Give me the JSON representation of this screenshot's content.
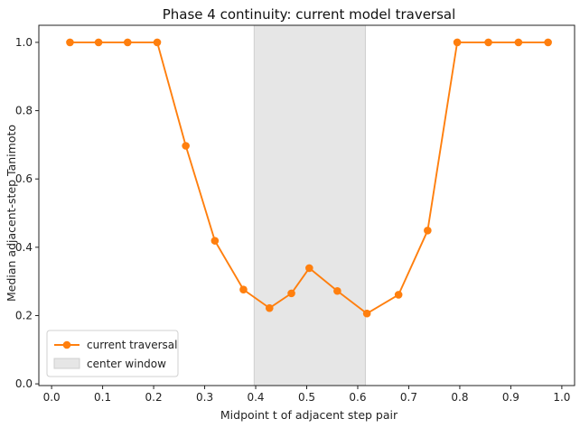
{
  "chart_data": {
    "type": "line",
    "title": "Phase 4 continuity: current model traversal",
    "xlabel": "Midpoint t of adjacent step pair",
    "ylabel": "Median adjacent-step Tanimoto",
    "xlim": [
      -0.025,
      1.025
    ],
    "ylim": [
      -0.005,
      1.05
    ],
    "xticks": [
      0.0,
      0.1,
      0.2,
      0.3,
      0.4,
      0.5,
      0.6,
      0.7,
      0.8,
      0.9,
      1.0
    ],
    "xtick_labels": [
      "0.0",
      "0.1",
      "0.2",
      "0.3",
      "0.4",
      "0.5",
      "0.6",
      "0.7",
      "0.8",
      "0.9",
      "1.0"
    ],
    "yticks": [
      0.0,
      0.2,
      0.4,
      0.6,
      0.8,
      1.0
    ],
    "ytick_labels": [
      "0.0",
      "0.2",
      "0.4",
      "0.6",
      "0.8",
      "1.0"
    ],
    "grid": false,
    "legend_position": "lower-left",
    "series": [
      {
        "name": "current traversal",
        "color": "#ff7f0e",
        "marker": "circle",
        "x": [
          0.036,
          0.092,
          0.149,
          0.207,
          0.263,
          0.32,
          0.376,
          0.427,
          0.47,
          0.505,
          0.56,
          0.618,
          0.68,
          0.737,
          0.795,
          0.856,
          0.915,
          0.973
        ],
        "y": [
          1.0,
          1.0,
          1.0,
          1.0,
          0.697,
          0.419,
          0.276,
          0.222,
          0.265,
          0.339,
          0.272,
          0.206,
          0.261,
          0.449,
          1.0,
          1.0,
          1.0,
          1.0
        ]
      }
    ],
    "shaded_regions": [
      {
        "name": "center window",
        "x_start": 0.397,
        "x_end": 0.615,
        "color": "#e6e6e6"
      }
    ]
  }
}
